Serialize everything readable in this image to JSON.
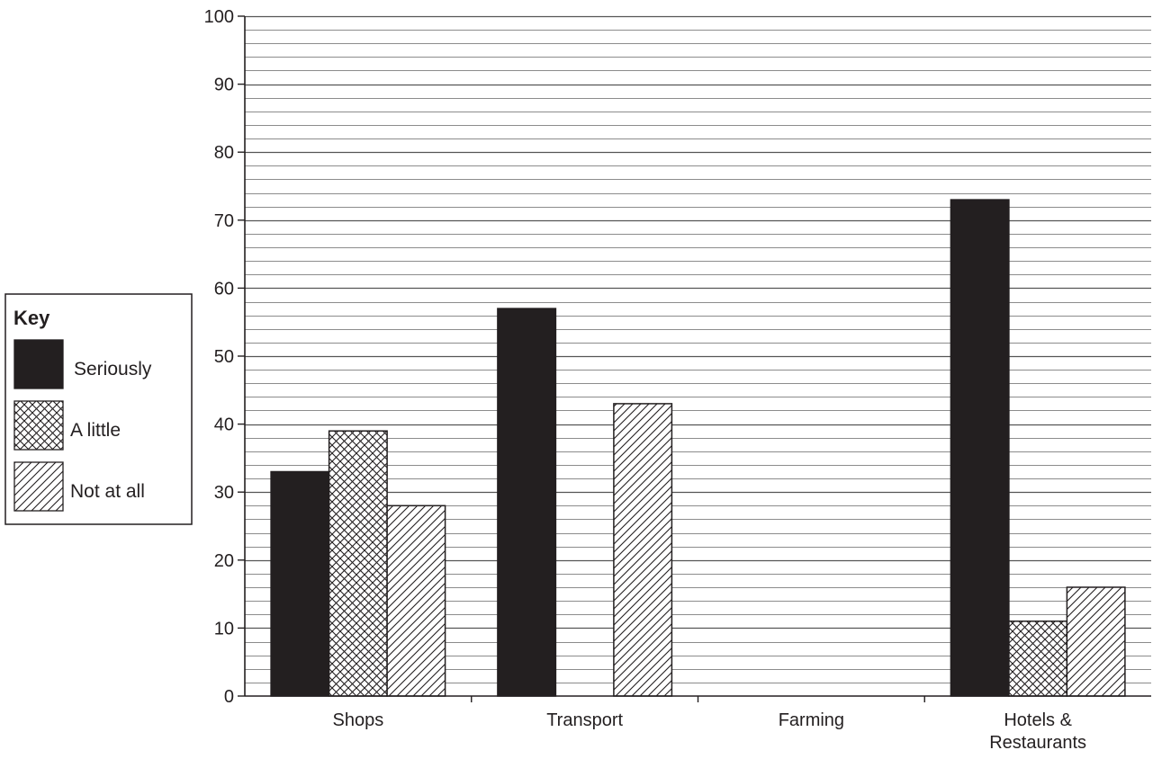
{
  "chart_data": {
    "type": "bar",
    "title": "",
    "xlabel": "",
    "ylabel": "",
    "ylim": [
      0,
      100
    ],
    "y_ticks": [
      0,
      10,
      20,
      30,
      40,
      50,
      60,
      70,
      80,
      90,
      100
    ],
    "minor_grid_step": 2,
    "grid": true,
    "legend_placement": "left",
    "categories": [
      {
        "lines": [
          "Shops"
        ]
      },
      {
        "lines": [
          "Transport"
        ]
      },
      {
        "lines": [
          "Farming"
        ]
      },
      {
        "lines": [
          "Hotels &",
          "Restaurants"
        ]
      }
    ],
    "series": [
      {
        "name": "Seriously",
        "pattern": "solid",
        "values": [
          33,
          57,
          0,
          73
        ]
      },
      {
        "name": "A little",
        "pattern": "crosshatch",
        "values": [
          39,
          0,
          0,
          11
        ]
      },
      {
        "name": "Not at all",
        "pattern": "diagonal",
        "values": [
          28,
          43,
          0,
          16
        ]
      }
    ],
    "legend": {
      "title": "Key"
    },
    "colors": {
      "ink": "#231f20",
      "grid": "#8c8c8c",
      "background": "#ffffff"
    }
  }
}
